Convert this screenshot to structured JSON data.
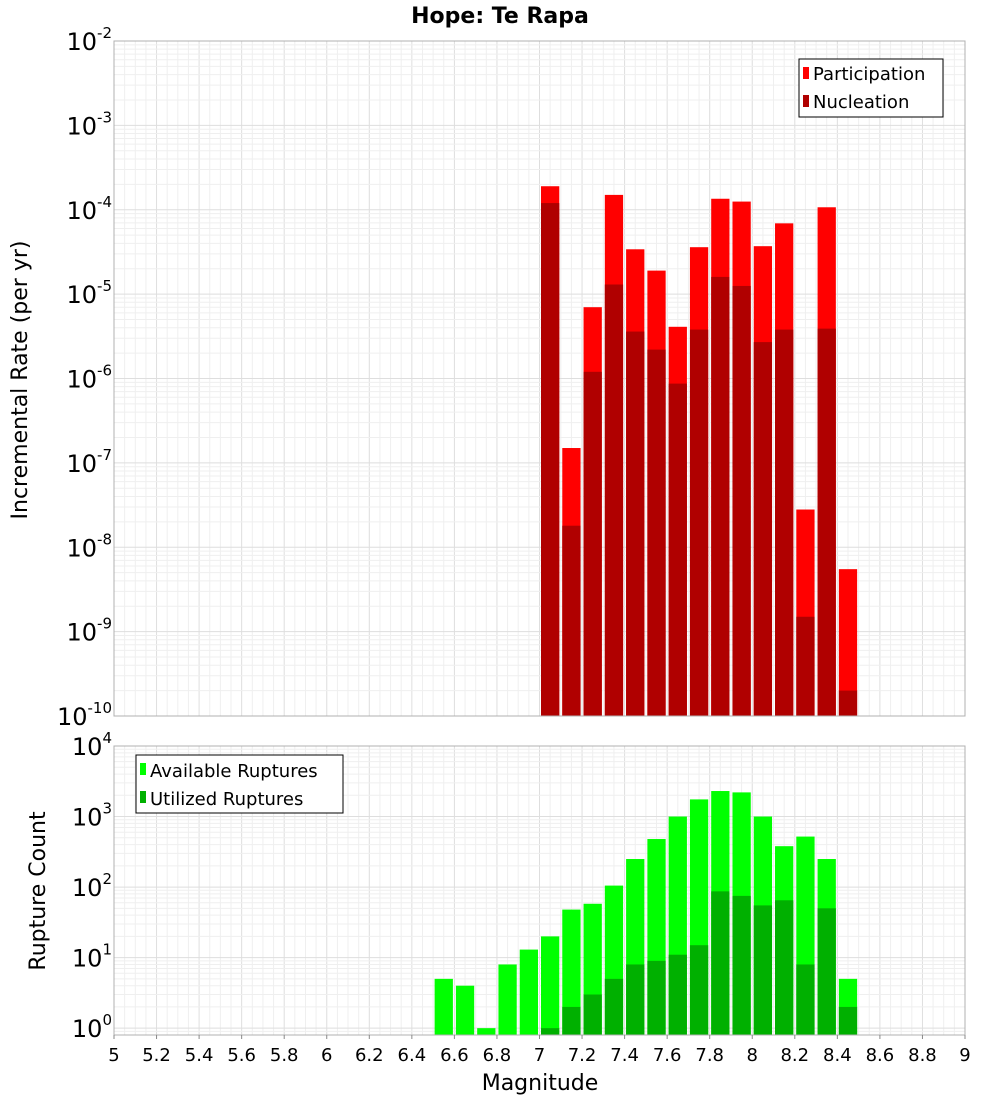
{
  "title": "Hope: Te Rapa",
  "colors": {
    "participation": "#ff0000",
    "nucleation": "#b00000",
    "available": "#00ff00",
    "utilized": "#00b000"
  },
  "chart_data": [
    {
      "type": "bar",
      "title": "Hope: Te Rapa",
      "xlabel": "",
      "ylabel": "Incremental Rate (per yr)",
      "yscale": "log",
      "ylim": [
        1e-10,
        0.01
      ],
      "xlim": [
        5,
        9
      ],
      "yticks": [
        {
          "base": "10",
          "exp": "-10"
        },
        {
          "base": "10",
          "exp": "-9"
        },
        {
          "base": "10",
          "exp": "-8"
        },
        {
          "base": "10",
          "exp": "-7"
        },
        {
          "base": "10",
          "exp": "-6"
        },
        {
          "base": "10",
          "exp": "-5"
        },
        {
          "base": "10",
          "exp": "-4"
        },
        {
          "base": "10",
          "exp": "-3"
        },
        {
          "base": "10",
          "exp": "-2"
        }
      ],
      "bin_width": 0.1,
      "grid": true,
      "legend_position": "top-right",
      "series": [
        {
          "name": "Participation",
          "x": [
            7.05,
            7.15,
            7.25,
            7.35,
            7.45,
            7.55,
            7.65,
            7.75,
            7.85,
            7.95,
            8.05,
            8.15,
            8.25,
            8.35,
            8.45
          ],
          "values": [
            0.00019,
            1.5e-07,
            7e-06,
            0.00015,
            3.4e-05,
            1.9e-05,
            4.1e-06,
            3.6e-05,
            0.000135,
            0.000125,
            3.7e-05,
            6.9e-05,
            2.8e-08,
            0.000107,
            5.5e-09
          ]
        },
        {
          "name": "Nucleation",
          "x": [
            7.05,
            7.15,
            7.25,
            7.35,
            7.45,
            7.55,
            7.65,
            7.75,
            7.85,
            7.95,
            8.05,
            8.15,
            8.25,
            8.35,
            8.45
          ],
          "values": [
            0.00012,
            1.8e-08,
            1.2e-06,
            1.3e-05,
            3.6e-06,
            2.2e-06,
            8.7e-07,
            3.8e-06,
            1.6e-05,
            1.25e-05,
            2.7e-06,
            3.8e-06,
            1.5e-09,
            3.9e-06,
            2e-10
          ]
        }
      ]
    },
    {
      "type": "bar",
      "title": "",
      "xlabel": "Magnitude",
      "ylabel": "Rupture Count",
      "yscale": "log",
      "ylim": [
        0.8,
        10000
      ],
      "xlim": [
        5,
        9
      ],
      "yticks": [
        {
          "base": "10",
          "exp": "0"
        },
        {
          "base": "10",
          "exp": "1"
        },
        {
          "base": "10",
          "exp": "2"
        },
        {
          "base": "10",
          "exp": "3"
        },
        {
          "base": "10",
          "exp": "4"
        }
      ],
      "xticks": [
        "5",
        "5.2",
        "5.4",
        "5.6",
        "5.8",
        "6",
        "6.2",
        "6.4",
        "6.6",
        "6.8",
        "7",
        "7.2",
        "7.4",
        "7.6",
        "7.8",
        "8",
        "8.2",
        "8.4",
        "8.6",
        "8.8",
        "9"
      ],
      "bin_width": 0.1,
      "grid": true,
      "legend_position": "top-left",
      "series": [
        {
          "name": "Available Ruptures",
          "x": [
            6.55,
            6.65,
            6.75,
            6.85,
            6.95,
            7.05,
            7.15,
            7.25,
            7.35,
            7.45,
            7.55,
            7.65,
            7.75,
            7.85,
            7.95,
            8.05,
            8.15,
            8.25,
            8.35,
            8.45
          ],
          "values": [
            5,
            4,
            1,
            8,
            13,
            20,
            48,
            58,
            105,
            250,
            480,
            1000,
            1750,
            2300,
            2200,
            1000,
            380,
            520,
            250,
            5
          ]
        },
        {
          "name": "Utilized Ruptures",
          "x": [
            7.05,
            7.15,
            7.25,
            7.35,
            7.45,
            7.55,
            7.65,
            7.75,
            7.85,
            7.95,
            8.05,
            8.15,
            8.25,
            8.35,
            8.45
          ],
          "values": [
            1,
            2,
            3,
            5,
            8,
            9,
            11,
            15,
            87,
            75,
            55,
            65,
            8,
            50,
            2
          ]
        }
      ]
    }
  ]
}
